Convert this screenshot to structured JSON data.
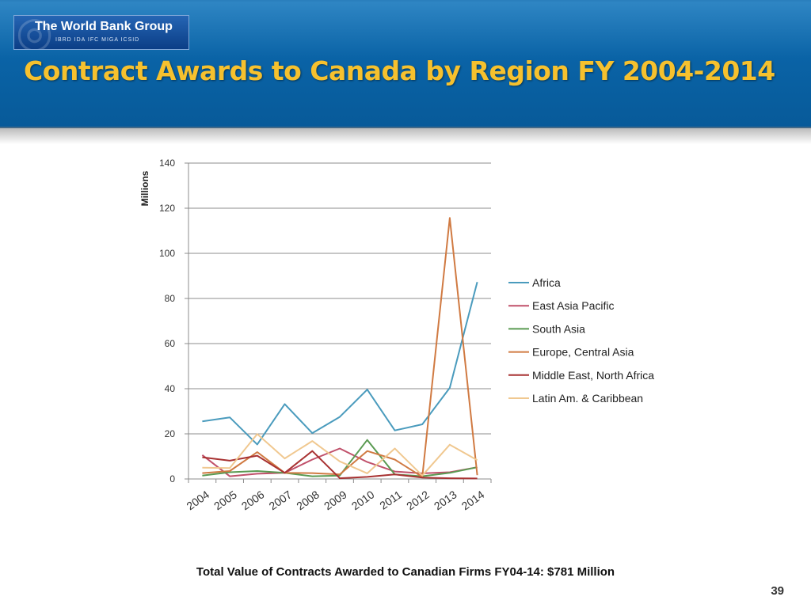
{
  "header": {
    "logo": {
      "name": "The World Bank Group",
      "sub": "IBRD IDA IFC MIGA ICSID"
    },
    "title": "Contract Awards to Canada by Region FY 2004-2014"
  },
  "chart_data": {
    "type": "line",
    "title": "Contract Awards to Canada by Region FY 2004-2014",
    "xlabel": "",
    "ylabel": "Millions",
    "ylim": [
      0,
      140
    ],
    "yticks": [
      0,
      20,
      40,
      60,
      80,
      100,
      120,
      140
    ],
    "grid": true,
    "legend_position": "right",
    "categories": [
      "2004",
      "2005",
      "2006",
      "2007",
      "2008",
      "2009",
      "2010",
      "2011",
      "2012",
      "2013",
      "2014"
    ],
    "series": [
      {
        "name": "Africa",
        "color": "#4a9bbd",
        "values": [
          25.5,
          27.3,
          15.3,
          33.2,
          20.3,
          27.5,
          39.6,
          21.5,
          24.2,
          40.4,
          87.3
        ]
      },
      {
        "name": "East Asia Pacific",
        "color": "#c0506a",
        "values": [
          10.6,
          1.2,
          2.3,
          2.7,
          8.6,
          13.5,
          7.5,
          3.3,
          2.5,
          3.0,
          5.2
        ]
      },
      {
        "name": "South Asia",
        "color": "#5a9a52",
        "values": [
          1.5,
          3.0,
          3.5,
          2.7,
          1.2,
          1.5,
          17.3,
          2.0,
          1.2,
          2.7,
          5.2
        ]
      },
      {
        "name": "Europe, Central Asia",
        "color": "#d07a42",
        "values": [
          2.6,
          3.5,
          11.9,
          2.7,
          2.6,
          2.0,
          12.4,
          8.6,
          0.9,
          115.7,
          1.7
        ]
      },
      {
        "name": "Middle East, North Africa",
        "color": "#a83232",
        "values": [
          9.6,
          8.1,
          10.3,
          2.7,
          12.4,
          0.3,
          0.9,
          2.0,
          0.6,
          0.3,
          0.2
        ]
      },
      {
        "name": "Latin Am. & Caribbean",
        "color": "#f0c890",
        "values": [
          5.0,
          4.8,
          19.9,
          9.1,
          16.8,
          7.8,
          2.5,
          13.5,
          1.5,
          15.2,
          8.3
        ]
      }
    ]
  },
  "footer": {
    "total": "Total Value of Contracts Awarded to Canadian Firms FY04-14: $781 Million"
  },
  "page_number": "39"
}
